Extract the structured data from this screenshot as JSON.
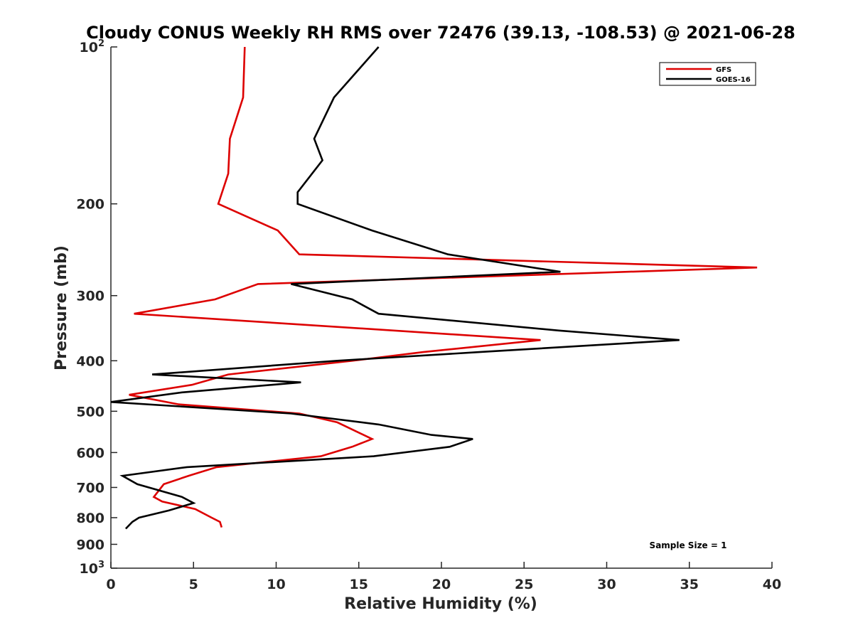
{
  "chart_data": {
    "type": "line",
    "title": "Cloudy CONUS Weekly RH RMS over 72476 (39.13, -108.53) @ 2021-06-28",
    "xlabel": "Relative Humidity (%)",
    "ylabel": "Pressure (mb)",
    "xlim": [
      0,
      40
    ],
    "ylim": [
      1000,
      100
    ],
    "y_scale": "log",
    "y_reversed": true,
    "grid": false,
    "legend_position": "top-right",
    "x_ticks": [
      "0",
      "5",
      "10",
      "15",
      "20",
      "25",
      "30",
      "35",
      "40"
    ],
    "y_ticks": [
      {
        "value": 100,
        "base": "10",
        "exp": "2"
      },
      {
        "value": 200,
        "label": "200"
      },
      {
        "value": 300,
        "label": "300"
      },
      {
        "value": 400,
        "label": "400"
      },
      {
        "value": 500,
        "label": "500"
      },
      {
        "value": 600,
        "label": "600"
      },
      {
        "value": 700,
        "label": "700"
      },
      {
        "value": 800,
        "label": "800"
      },
      {
        "value": 900,
        "label": "900"
      },
      {
        "value": 1000,
        "base": "10",
        "exp": "3"
      }
    ],
    "series": [
      {
        "name": "GFS",
        "color": "#dd0000",
        "points": [
          [
            8.1,
            100
          ],
          [
            8.0,
            125
          ],
          [
            7.2,
            150
          ],
          [
            7.1,
            175
          ],
          [
            6.5,
            200
          ],
          [
            10.1,
            225
          ],
          [
            11.4,
            250
          ],
          [
            39.1,
            265
          ],
          [
            8.9,
            285
          ],
          [
            6.3,
            305
          ],
          [
            1.4,
            325
          ],
          [
            26.0,
            365
          ],
          [
            18.9,
            385
          ],
          [
            14.6,
            400
          ],
          [
            7.1,
            425
          ],
          [
            4.9,
            445
          ],
          [
            1.1,
            465
          ],
          [
            4.1,
            485
          ],
          [
            11.4,
            505
          ],
          [
            13.7,
            525
          ],
          [
            15.8,
            565
          ],
          [
            14.6,
            585
          ],
          [
            12.7,
            610
          ],
          [
            6.4,
            640
          ],
          [
            4.7,
            665
          ],
          [
            3.2,
            690
          ],
          [
            2.6,
            730
          ],
          [
            3.1,
            745
          ],
          [
            5.1,
            770
          ],
          [
            6.1,
            800
          ],
          [
            6.6,
            815
          ],
          [
            6.7,
            835
          ]
        ]
      },
      {
        "name": "GOES-16",
        "color": "#000000",
        "points": [
          [
            16.2,
            100
          ],
          [
            13.5,
            125
          ],
          [
            12.3,
            150
          ],
          [
            12.8,
            165
          ],
          [
            11.3,
            190
          ],
          [
            11.3,
            200
          ],
          [
            15.8,
            225
          ],
          [
            20.4,
            250
          ],
          [
            27.2,
            270
          ],
          [
            10.9,
            285
          ],
          [
            14.6,
            305
          ],
          [
            16.2,
            325
          ],
          [
            27.1,
            350
          ],
          [
            34.4,
            365
          ],
          [
            22.3,
            385
          ],
          [
            13.7,
            400
          ],
          [
            2.5,
            425
          ],
          [
            11.5,
            440
          ],
          [
            4.3,
            460
          ],
          [
            0.0,
            480
          ],
          [
            10.9,
            505
          ],
          [
            16.2,
            530
          ],
          [
            19.4,
            555
          ],
          [
            21.9,
            565
          ],
          [
            20.5,
            585
          ],
          [
            15.9,
            610
          ],
          [
            4.6,
            640
          ],
          [
            0.7,
            665
          ],
          [
            1.6,
            690
          ],
          [
            4.3,
            730
          ],
          [
            5.0,
            750
          ],
          [
            3.5,
            775
          ],
          [
            1.7,
            800
          ],
          [
            1.3,
            815
          ],
          [
            0.9,
            840
          ]
        ]
      }
    ],
    "annotation": "Sample Size = 1"
  }
}
